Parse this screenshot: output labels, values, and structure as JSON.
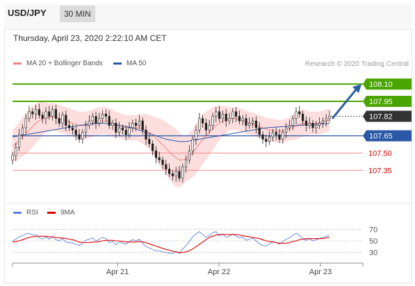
{
  "header": {
    "symbol": "USD/JPY",
    "timeframe": "30 MIN"
  },
  "datetime": "Thursday, April 23, 2020 2:22:10 AM CET",
  "legend": [
    {
      "label": "MA 20 + Bollinger Bands",
      "color": "#f08080"
    },
    {
      "label": "MA 50",
      "color": "#2b58a6"
    }
  ],
  "credit": "Research © 2020 Trading Central",
  "rsi_legend": [
    {
      "label": "RSI",
      "color": "#5b7fd6"
    },
    {
      "label": "9MA",
      "color": "#dd0000"
    }
  ],
  "chart_data": [
    {
      "type": "candlestick",
      "ylim": [
        107.11,
        108.24
      ],
      "x_ticks": [
        "Apr 21",
        "Apr 22",
        "Apr 23"
      ],
      "levels": [
        {
          "value": 108.1,
          "label": "108.10",
          "kind": "resistance",
          "color": "#4aa500"
        },
        {
          "value": 107.95,
          "label": "107.95",
          "kind": "resistance",
          "color": "#4aa500"
        },
        {
          "value": 107.82,
          "label": "107.82",
          "kind": "current",
          "color": "#333333"
        },
        {
          "value": 107.65,
          "label": "107.65",
          "kind": "pivot",
          "color": "#2b58a6"
        },
        {
          "value": 107.5,
          "label": "107.50",
          "kind": "support",
          "color": "#d00000"
        },
        {
          "value": 107.35,
          "label": "107.35",
          "kind": "support",
          "color": "#d00000"
        }
      ],
      "arrow": {
        "from": 107.8,
        "to": 108.1,
        "direction": "up",
        "color": "#2b5fa0"
      },
      "closes": [
        107.48,
        107.55,
        107.66,
        107.72,
        107.8,
        107.86,
        107.84,
        107.88,
        107.83,
        107.8,
        107.86,
        107.82,
        107.88,
        107.8,
        107.76,
        107.83,
        107.74,
        107.72,
        107.7,
        107.66,
        107.62,
        107.68,
        107.74,
        107.78,
        107.82,
        107.76,
        107.8,
        107.84,
        107.82,
        107.74,
        107.76,
        107.68,
        107.72,
        107.7,
        107.66,
        107.72,
        107.76,
        107.74,
        107.78,
        107.7,
        107.62,
        107.58,
        107.52,
        107.46,
        107.44,
        107.4,
        107.36,
        107.32,
        107.3,
        107.34,
        107.28,
        107.38,
        107.44,
        107.52,
        107.62,
        107.7,
        107.8,
        107.76,
        107.7,
        107.74,
        107.82,
        107.86,
        107.8,
        107.84,
        107.78,
        107.8,
        107.86,
        107.82,
        107.78,
        107.8,
        107.74,
        107.76,
        107.78,
        107.72,
        107.66,
        107.62,
        107.6,
        107.64,
        107.68,
        107.66,
        107.62,
        107.68,
        107.72,
        107.74,
        107.8,
        107.86,
        107.84,
        107.78,
        107.74,
        107.76,
        107.72,
        107.74,
        107.76,
        107.78,
        107.8,
        107.82
      ],
      "ma20": [
        107.56,
        107.58,
        107.61,
        107.64,
        107.67,
        107.7,
        107.73,
        107.76,
        107.78,
        107.8,
        107.81,
        107.81,
        107.82,
        107.81,
        107.8,
        107.79,
        107.78,
        107.77,
        107.76,
        107.75,
        107.74,
        107.74,
        107.74,
        107.75,
        107.76,
        107.77,
        107.78,
        107.78,
        107.78,
        107.77,
        107.76,
        107.75,
        107.74,
        107.73,
        107.72,
        107.72,
        107.72,
        107.72,
        107.72,
        107.71,
        107.7,
        107.68,
        107.66,
        107.63,
        107.6,
        107.57,
        107.54,
        107.51,
        107.48,
        107.46,
        107.44,
        107.44,
        107.45,
        107.47,
        107.5,
        107.54,
        107.58,
        107.62,
        107.65,
        107.68,
        107.71,
        107.74,
        107.76,
        107.78,
        107.79,
        107.8,
        107.8,
        107.8,
        107.79,
        107.78,
        107.77,
        107.76,
        107.75,
        107.74,
        107.73,
        107.72,
        107.71,
        107.7,
        107.7,
        107.69,
        107.69,
        107.69,
        107.7,
        107.71,
        107.72,
        107.74,
        107.75,
        107.76,
        107.76,
        107.76,
        107.76,
        107.76,
        107.76,
        107.77,
        107.78,
        107.79
      ],
      "bb_width": [
        0.14,
        0.15,
        0.16,
        0.17,
        0.18,
        0.18,
        0.18,
        0.17,
        0.16,
        0.15,
        0.13,
        0.12,
        0.12,
        0.12,
        0.12,
        0.12,
        0.12,
        0.12,
        0.12,
        0.12,
        0.12,
        0.12,
        0.12,
        0.12,
        0.12,
        0.12,
        0.12,
        0.12,
        0.12,
        0.12,
        0.12,
        0.11,
        0.11,
        0.11,
        0.11,
        0.11,
        0.11,
        0.11,
        0.12,
        0.13,
        0.14,
        0.15,
        0.16,
        0.18,
        0.2,
        0.22,
        0.23,
        0.24,
        0.25,
        0.25,
        0.24,
        0.22,
        0.2,
        0.2,
        0.21,
        0.22,
        0.22,
        0.22,
        0.21,
        0.2,
        0.19,
        0.17,
        0.15,
        0.13,
        0.12,
        0.1,
        0.1,
        0.1,
        0.1,
        0.1,
        0.1,
        0.1,
        0.1,
        0.1,
        0.1,
        0.1,
        0.1,
        0.1,
        0.1,
        0.1,
        0.1,
        0.1,
        0.1,
        0.1,
        0.11,
        0.12,
        0.12,
        0.12,
        0.11,
        0.1,
        0.1,
        0.1,
        0.1,
        0.1,
        0.1,
        0.1
      ],
      "ma50": [
        107.64,
        107.645,
        107.65,
        107.655,
        107.66,
        107.665,
        107.67,
        107.675,
        107.68,
        107.685,
        107.69,
        107.695,
        107.7,
        107.705,
        107.71,
        107.715,
        107.72,
        107.725,
        107.73,
        107.735,
        107.74,
        107.745,
        107.75,
        107.752,
        107.754,
        107.756,
        107.758,
        107.76,
        107.758,
        107.755,
        107.75,
        107.745,
        107.74,
        107.735,
        107.73,
        107.725,
        107.72,
        107.71,
        107.7,
        107.69,
        107.68,
        107.67,
        107.66,
        107.65,
        107.64,
        107.63,
        107.62,
        107.615,
        107.61,
        107.605,
        107.6,
        107.6,
        107.6,
        107.605,
        107.61,
        107.615,
        107.62,
        107.625,
        107.63,
        107.635,
        107.64,
        107.645,
        107.65,
        107.655,
        107.66,
        107.665,
        107.67,
        107.675,
        107.68,
        107.685,
        107.69,
        107.695,
        107.7,
        107.705,
        107.71,
        107.715,
        107.72,
        107.722,
        107.724,
        107.726,
        107.728,
        107.73,
        107.732,
        107.734,
        107.736,
        107.738,
        107.74,
        107.742,
        107.744,
        107.746,
        107.748,
        107.75,
        107.752,
        107.754,
        107.756,
        107.758
      ]
    },
    {
      "type": "line",
      "title": "RSI",
      "ylim": [
        20,
        80
      ],
      "y_ticks": [
        70,
        50,
        30
      ],
      "series": [
        {
          "name": "RSI",
          "color": "#5b7fd6",
          "values": [
            50,
            53,
            57,
            59,
            62,
            63,
            60,
            61,
            56,
            53,
            57,
            53,
            58,
            52,
            50,
            54,
            48,
            47,
            46,
            44,
            42,
            46,
            51,
            53,
            55,
            50,
            53,
            56,
            54,
            47,
            49,
            43,
            48,
            46,
            44,
            49,
            52,
            50,
            53,
            46,
            40,
            38,
            35,
            33,
            33,
            31,
            30,
            29,
            28,
            32,
            28,
            36,
            42,
            49,
            57,
            62,
            66,
            61,
            56,
            59,
            64,
            66,
            59,
            62,
            56,
            58,
            62,
            58,
            55,
            57,
            51,
            53,
            55,
            50,
            45,
            42,
            41,
            45,
            49,
            47,
            44,
            49,
            53,
            55,
            60,
            63,
            60,
            54,
            51,
            54,
            50,
            52,
            54,
            56,
            58,
            60
          ]
        },
        {
          "name": "9MA",
          "color": "#dd0000",
          "values": [
            48,
            49,
            50,
            52,
            54,
            56,
            57,
            58,
            58,
            58,
            58,
            57,
            57,
            56,
            55,
            55,
            54,
            53,
            52,
            50,
            48,
            47,
            47,
            47,
            48,
            48,
            49,
            50,
            51,
            51,
            51,
            50,
            50,
            49,
            48,
            48,
            48,
            48,
            49,
            48,
            47,
            45,
            43,
            41,
            39,
            37,
            35,
            34,
            32,
            31,
            30,
            30,
            31,
            33,
            36,
            40,
            44,
            48,
            52,
            56,
            58,
            60,
            61,
            61,
            61,
            61,
            61,
            61,
            60,
            59,
            58,
            57,
            56,
            55,
            54,
            52,
            50,
            49,
            48,
            47,
            46,
            46,
            46,
            47,
            49,
            50,
            52,
            53,
            54,
            54,
            54,
            54,
            54,
            54,
            55,
            56
          ]
        }
      ]
    }
  ]
}
